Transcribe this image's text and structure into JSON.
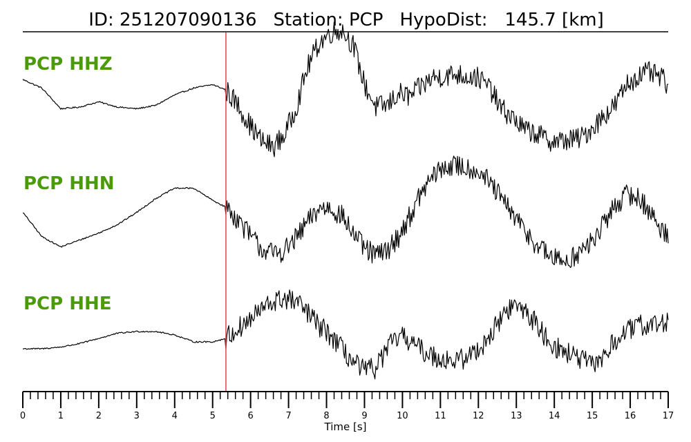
{
  "header": {
    "id_text": "ID: 251207090136",
    "station_text": "Station: PCP",
    "dist_text": "HypoDist:   145.7 [km]"
  },
  "chart_data": {
    "type": "line",
    "title": "ID: 251207090136   Station: PCP   HypoDist:   145.7 [km]",
    "xlabel": "Time [s]",
    "xlim": [
      0,
      17
    ],
    "x_major_ticks": [
      0,
      1,
      2,
      3,
      4,
      5,
      6,
      7,
      8,
      9,
      10,
      11,
      12,
      13,
      14,
      15,
      16,
      17
    ],
    "x_minor_step": 0.2,
    "grid": false,
    "pick_time": 5.35,
    "pick_color": "#e8413a",
    "label_color": "#4a9a0a",
    "trace_color": "#000000",
    "series": [
      {
        "name": "PCP HHZ",
        "x": [
          0,
          0.5,
          1.0,
          1.5,
          2.0,
          2.5,
          3.0,
          3.5,
          4.0,
          4.5,
          5.0,
          5.35,
          5.7,
          6.0,
          6.3,
          6.6,
          6.9,
          7.2,
          7.5,
          7.8,
          8.1,
          8.4,
          8.7,
          9.0,
          9.3,
          9.6,
          9.9,
          10.2,
          10.5,
          10.8,
          11.1,
          11.4,
          11.7,
          12.0,
          12.3,
          12.6,
          12.9,
          13.2,
          13.5,
          13.8,
          14.1,
          14.4,
          14.7,
          15.0,
          15.3,
          15.6,
          15.9,
          16.2,
          16.5,
          16.8,
          17.0
        ],
        "y": [
          0.5,
          0.25,
          -0.35,
          -0.3,
          -0.15,
          -0.3,
          -0.35,
          -0.25,
          0.05,
          0.25,
          0.35,
          0.2,
          -0.3,
          -0.85,
          -1.3,
          -1.45,
          -1.1,
          -0.3,
          0.85,
          1.55,
          1.85,
          1.95,
          1.5,
          0.35,
          -0.3,
          -0.25,
          0.1,
          0.0,
          0.3,
          0.55,
          0.6,
          0.65,
          0.6,
          0.55,
          0.25,
          -0.35,
          -0.6,
          -0.95,
          -1.05,
          -1.25,
          -1.3,
          -1.25,
          -1.2,
          -0.9,
          -0.55,
          -0.25,
          0.35,
          0.6,
          0.7,
          0.55,
          0.35
        ]
      },
      {
        "name": "PCP HHN",
        "x": [
          0,
          0.5,
          1.0,
          1.5,
          2.0,
          2.5,
          3.0,
          3.5,
          4.0,
          4.5,
          5.0,
          5.35,
          5.7,
          6.0,
          6.3,
          6.6,
          6.9,
          7.2,
          7.5,
          7.8,
          8.1,
          8.4,
          8.7,
          9.0,
          9.3,
          9.6,
          9.9,
          10.2,
          10.5,
          10.8,
          11.1,
          11.4,
          11.7,
          12.0,
          12.3,
          12.6,
          12.9,
          13.2,
          13.5,
          13.8,
          14.1,
          14.4,
          14.7,
          15.0,
          15.3,
          15.6,
          15.9,
          16.2,
          16.5,
          16.8,
          17.0
        ],
        "y": [
          0.15,
          -0.55,
          -0.85,
          -0.65,
          -0.45,
          -0.2,
          0.15,
          0.55,
          0.85,
          0.85,
          0.5,
          0.3,
          -0.1,
          -0.55,
          -0.9,
          -1.05,
          -0.95,
          -0.6,
          -0.15,
          0.25,
          0.3,
          0.05,
          -0.45,
          -0.9,
          -1.1,
          -0.95,
          -0.55,
          0.05,
          0.7,
          1.2,
          1.45,
          1.5,
          1.45,
          1.35,
          1.0,
          0.55,
          0.1,
          -0.35,
          -0.75,
          -1.05,
          -1.25,
          -1.2,
          -1.0,
          -0.7,
          -0.2,
          0.35,
          0.65,
          0.6,
          0.2,
          -0.35,
          -0.45
        ]
      },
      {
        "name": "PCP HHE",
        "x": [
          0,
          0.5,
          1.0,
          1.5,
          2.0,
          2.5,
          3.0,
          3.5,
          4.0,
          4.5,
          5.0,
          5.35,
          5.7,
          6.0,
          6.3,
          6.6,
          6.9,
          7.2,
          7.5,
          7.8,
          8.1,
          8.4,
          8.7,
          9.0,
          9.3,
          9.6,
          9.9,
          10.2,
          10.5,
          10.8,
          11.1,
          11.4,
          11.7,
          12.0,
          12.3,
          12.6,
          12.9,
          13.2,
          13.5,
          13.8,
          14.1,
          14.4,
          14.7,
          15.0,
          15.3,
          15.6,
          15.9,
          16.2,
          16.5,
          16.8,
          17.0
        ],
        "y": [
          -0.3,
          -0.3,
          -0.25,
          -0.15,
          0.0,
          0.15,
          0.2,
          0.2,
          0.1,
          -0.1,
          -0.1,
          0.0,
          0.3,
          0.55,
          0.85,
          1.05,
          1.15,
          1.05,
          0.75,
          0.35,
          0.1,
          -0.3,
          -0.7,
          -0.95,
          -0.85,
          -0.3,
          0.05,
          -0.05,
          -0.35,
          -0.5,
          -0.6,
          -0.65,
          -0.55,
          -0.3,
          0.05,
          0.6,
          0.95,
          0.85,
          0.45,
          0.0,
          -0.3,
          -0.45,
          -0.6,
          -0.8,
          -0.5,
          -0.1,
          0.2,
          0.35,
          0.4,
          0.4,
          0.5
        ]
      }
    ]
  }
}
